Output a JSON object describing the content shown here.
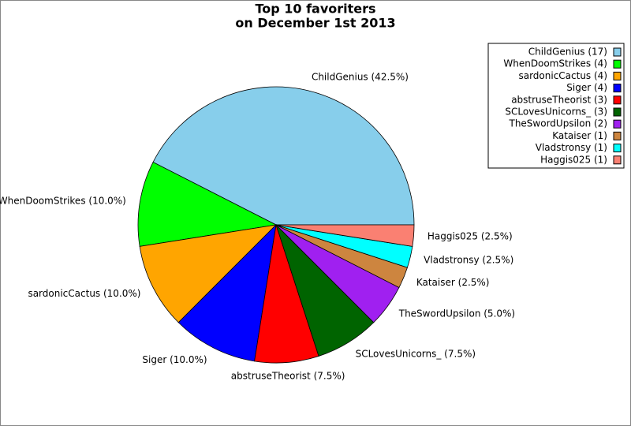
{
  "chart_data": {
    "type": "pie",
    "title": "Top 10 favoriters",
    "subtitle": "on December 1st 2013",
    "values": [
      42.5,
      10.0,
      10.0,
      10.0,
      7.5,
      7.5,
      5.0,
      2.5,
      2.5,
      2.5
    ],
    "value_labels": [
      "ChildGenius (42.5%)",
      "WhenDoomStrikes (10.0%)",
      "sardonicCactus (10.0%)",
      "Siger (10.0%)",
      "abstruseTheorist (7.5%)",
      "SCLovesUnicorns_ (7.5%)",
      "TheSwordUpsilon (5.0%)",
      "Kataiser (2.5%)",
      "Vladstronsy (2.5%)",
      "Haggis025 (2.5%)"
    ],
    "legend": [
      "ChildGenius (17)",
      "WhenDoomStrikes (4)",
      "sardonicCactus (4)",
      "Siger (4)",
      "abstruseTheorist (3)",
      "SCLovesUnicorns_ (3)",
      "TheSwordUpsilon (2)",
      "Kataiser (1)",
      "Vladstronsy (1)",
      "Haggis025 (1)"
    ],
    "colors": [
      "#87ceeb",
      "#00ff00",
      "#ffa500",
      "#0000ff",
      "#ff0000",
      "#006400",
      "#a020f0",
      "#cd853f",
      "#00ffff",
      "#fa8072"
    ],
    "legend_position": "upper right"
  }
}
